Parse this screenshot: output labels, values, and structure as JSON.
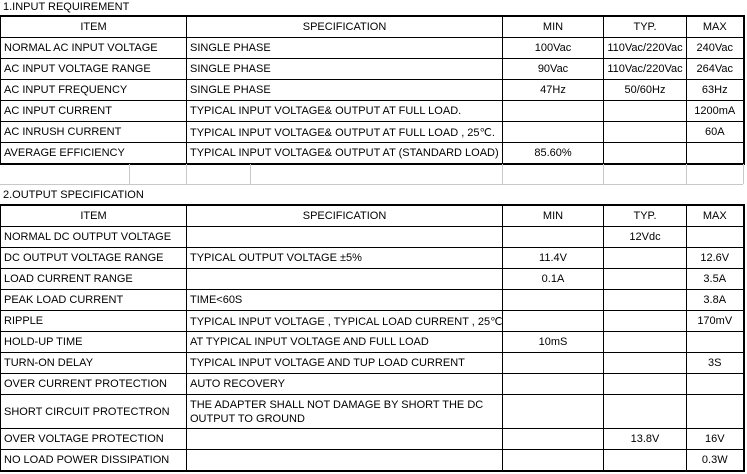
{
  "input_section": {
    "title": "1.INPUT REQUIREMENT",
    "headers": [
      "ITEM",
      "SPECIFICATION",
      "MIN",
      "TYP.",
      "MAX"
    ],
    "rows": [
      [
        "NORMAL AC INPUT VOLTAGE",
        "SINGLE PHASE",
        "100Vac",
        "110Vac/220Vac",
        "240Vac"
      ],
      [
        "AC INPUT VOLTAGE RANGE",
        "SINGLE PHASE",
        "90Vac",
        "110Vac/220Vac",
        "264Vac"
      ],
      [
        "AC INPUT FREQUENCY",
        "SINGLE PHASE",
        "47Hz",
        "50/60Hz",
        "63Hz"
      ],
      [
        "AC INPUT CURRENT",
        "TYPICAL INPUT VOLTAGE& OUTPUT AT FULL LOAD.",
        "",
        "",
        "1200mA"
      ],
      [
        "AC INRUSH CURRENT",
        "TYPICAL INPUT VOLTAGE& OUTPUT AT FULL LOAD , 25℃.",
        "",
        "",
        "60A"
      ],
      [
        "AVERAGE EFFICIENCY",
        "TYPICAL INPUT VOLTAGE& OUTPUT AT (STANDARD LOAD)",
        "85.60%",
        "",
        ""
      ]
    ]
  },
  "output_section": {
    "title": "2.OUTPUT SPECIFICATION",
    "headers": [
      "ITEM",
      "SPECIFICATION",
      "MIN",
      "TYP.",
      "MAX"
    ],
    "rows": [
      [
        "NORMAL DC OUTPUT VOLTAGE",
        "",
        "",
        "12Vdc",
        ""
      ],
      [
        "DC OUTPUT VOLTAGE RANGE",
        "TYPICAL OUTPUT VOLTAGE  ±5%",
        "11.4V",
        "",
        "12.6V"
      ],
      [
        "LOAD CURRENT  RANGE",
        "",
        "0.1A",
        "",
        "3.5A"
      ],
      [
        "PEAK LOAD  CURRENT",
        "TIME<60S",
        "",
        "",
        "3.8A"
      ],
      [
        "RIPPLE",
        "TYPICAL INPUT VOLTAGE , TYPICAL LOAD CURRENT , 25℃",
        "",
        "",
        "170mV"
      ],
      [
        "HOLD-UP TIME",
        "AT TYPICAL INPUT VOLTAGE AND FULL LOAD",
        "10mS",
        "",
        ""
      ],
      [
        "TURN-ON DELAY",
        "TYPICAL INPUT VOLTAGE AND TUP LOAD CURRENT",
        "",
        "",
        "3S"
      ],
      [
        "OVER CURRENT PROTECTION",
        "AUTO RECOVERY",
        "",
        "",
        ""
      ],
      [
        "SHORT CIRCUIT PROTECTRON",
        "THE ADAPTER SHALL NOT DAMAGE BY SHORT  THE DC OUTPUT  TO GROUND",
        "",
        "",
        ""
      ],
      [
        "OVER VOLTAGE PROTECTION",
        "",
        "",
        "13.8V",
        "16V"
      ],
      [
        "NO LOAD POWER DISSIPATION",
        "",
        "",
        "",
        "0.3W"
      ]
    ]
  }
}
